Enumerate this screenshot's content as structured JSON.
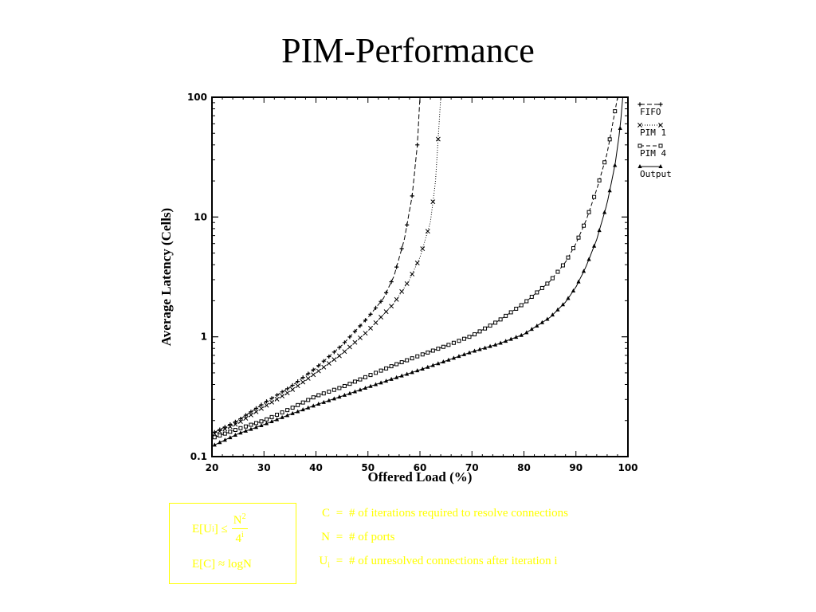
{
  "title": "PIM-Performance",
  "chart_data": {
    "type": "line",
    "xlabel": "Offered Load (%)",
    "ylabel": "Average Latency (Cells)",
    "xlim": [
      20,
      100
    ],
    "ylim": [
      0.1,
      100
    ],
    "yscale": "log",
    "x_ticks": [
      "20",
      "30",
      "40",
      "50",
      "60",
      "70",
      "80",
      "90",
      "100"
    ],
    "y_ticks": [
      "0.1",
      "1",
      "10",
      "100"
    ],
    "grid": false,
    "legend_position": "right",
    "series": [
      {
        "name": "FIFO",
        "marker": "plus",
        "dash": "6,3",
        "points": [
          [
            20.5,
            0.16
          ],
          [
            25,
            0.2
          ],
          [
            30,
            0.28
          ],
          [
            35,
            0.38
          ],
          [
            40,
            0.55
          ],
          [
            45,
            0.85
          ],
          [
            50,
            1.45
          ],
          [
            53,
            2.1
          ],
          [
            55,
            3.2
          ],
          [
            57,
            6.5
          ],
          [
            58.5,
            15
          ],
          [
            59.5,
            40
          ],
          [
            60,
            100
          ]
        ]
      },
      {
        "name": "PIM 1",
        "marker": "x",
        "dash": "1,2",
        "points": [
          [
            20.5,
            0.155
          ],
          [
            25,
            0.19
          ],
          [
            30,
            0.26
          ],
          [
            35,
            0.35
          ],
          [
            40,
            0.5
          ],
          [
            45,
            0.72
          ],
          [
            50,
            1.12
          ],
          [
            55,
            1.9
          ],
          [
            58,
            3
          ],
          [
            60,
            4.6
          ],
          [
            62,
            9
          ],
          [
            63,
            20
          ],
          [
            64,
            100
          ]
        ]
      },
      {
        "name": "PIM 4",
        "marker": "square",
        "dash": "5,3",
        "points": [
          [
            20.5,
            0.145
          ],
          [
            25,
            0.17
          ],
          [
            30,
            0.2
          ],
          [
            35,
            0.25
          ],
          [
            40,
            0.32
          ],
          [
            45,
            0.38
          ],
          [
            50,
            0.47
          ],
          [
            55,
            0.58
          ],
          [
            60,
            0.7
          ],
          [
            65,
            0.84
          ],
          [
            70,
            1.02
          ],
          [
            75,
            1.35
          ],
          [
            80,
            1.9
          ],
          [
            85,
            2.9
          ],
          [
            88,
            4.2
          ],
          [
            90,
            6
          ],
          [
            92,
            9.5
          ],
          [
            94,
            17
          ],
          [
            96,
            34
          ],
          [
            98,
            100
          ]
        ]
      },
      {
        "name": "Output",
        "marker": "triangle",
        "dash": "",
        "points": [
          [
            20.5,
            0.125
          ],
          [
            25,
            0.155
          ],
          [
            30,
            0.185
          ],
          [
            35,
            0.225
          ],
          [
            40,
            0.27
          ],
          [
            45,
            0.32
          ],
          [
            50,
            0.38
          ],
          [
            55,
            0.45
          ],
          [
            60,
            0.53
          ],
          [
            65,
            0.63
          ],
          [
            70,
            0.75
          ],
          [
            75,
            0.87
          ],
          [
            80,
            1.05
          ],
          [
            85,
            1.45
          ],
          [
            88,
            1.95
          ],
          [
            90,
            2.6
          ],
          [
            92,
            3.9
          ],
          [
            94,
            6.5
          ],
          [
            96,
            13
          ],
          [
            97.5,
            27
          ],
          [
            98.5,
            55
          ],
          [
            99,
            100
          ]
        ]
      }
    ]
  },
  "formulas": {
    "f1_lhs": "E[U",
    "f1_sub": "i",
    "f1_op": "] ≤",
    "f1_num": "N",
    "f1_num_sup": "2",
    "f1_den": "4",
    "f1_den_sup": "i",
    "f2": "E[C] ≈ logN"
  },
  "definitions": [
    {
      "symbol": "C",
      "subscript": "",
      "text": "# of iterations required to resolve connections"
    },
    {
      "symbol": "N",
      "subscript": "",
      "text": "# of ports"
    },
    {
      "symbol": "U",
      "subscript": "i",
      "text": "# of unresolved connections after iteration  i"
    }
  ],
  "colors": {
    "formula": "#ffff00",
    "axes": "#000000",
    "background": "#ffffff"
  }
}
